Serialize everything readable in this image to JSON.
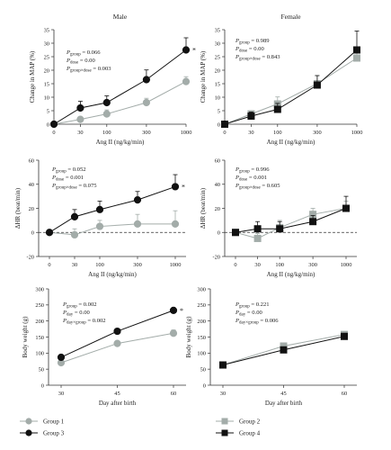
{
  "chart_data": [
    {
      "type": "line",
      "title": "Male",
      "xlabel": "Ang II (ng/kg/min)",
      "ylabel": "Change in MAP (%)",
      "categories": [
        "0",
        "30",
        "100",
        "300",
        "1000"
      ],
      "ylim": [
        0,
        35
      ],
      "yticks": [
        "0",
        "5",
        "10",
        "15",
        "20",
        "25",
        "30",
        "35"
      ],
      "annotations": [
        "Pgroup = 0.066",
        "Pdose = 0.00",
        "Pgroup×dose = 0.003"
      ],
      "sig_marker": "*",
      "series": [
        {
          "name": "Group 1",
          "color": "#a3aca9",
          "marker": "circle",
          "values": [
            0,
            1.8,
            3.8,
            8,
            15.8
          ],
          "errors": [
            0,
            0.9,
            1.5,
            1.6,
            1.8
          ]
        },
        {
          "name": "Group 3",
          "color": "#111111",
          "marker": "circle",
          "values": [
            0,
            6,
            8,
            16.5,
            27.5
          ],
          "errors": [
            0,
            2.5,
            2.5,
            3.6,
            4.5
          ]
        }
      ]
    },
    {
      "type": "line",
      "title": "Female",
      "xlabel": "Ang II (ng/kg/min)",
      "ylabel": "Change in MAP (%)",
      "categories": [
        "0",
        "30",
        "100",
        "300",
        "1000"
      ],
      "ylim": [
        0,
        35
      ],
      "yticks": [
        "0",
        "5",
        "10",
        "15",
        "20",
        "25",
        "30",
        "35"
      ],
      "annotations": [
        "Pgroup = 0.989",
        "Pdose = 0.00",
        "Pgroup×dose = 0.843"
      ],
      "series": [
        {
          "name": "Group 2",
          "color": "#a3aca9",
          "marker": "square",
          "values": [
            0,
            3.8,
            7.5,
            15,
            24.5
          ],
          "errors": [
            0,
            1.2,
            2.6,
            3,
            2.5
          ]
        },
        {
          "name": "Group 4",
          "color": "#111111",
          "marker": "square",
          "values": [
            0,
            3,
            5.5,
            14.5,
            27.5
          ],
          "errors": [
            0,
            1.5,
            2.2,
            3.5,
            7
          ]
        }
      ]
    },
    {
      "type": "line",
      "title": "",
      "xlabel": "Ang II (ng/kg/min)",
      "ylabel": "ΔHR (beat/min)",
      "categories": [
        "0",
        "30",
        "100",
        "300",
        "1000"
      ],
      "ylim": [
        -20,
        60
      ],
      "yticks": [
        "-20",
        "0",
        "20",
        "40",
        "60"
      ],
      "zero_line": true,
      "annotations": [
        "Pgroup = 0.052",
        "Pdose = 0.001",
        "Pgroup×dose = 0.075"
      ],
      "sig_marker": "*",
      "series": [
        {
          "name": "Group 1",
          "color": "#a3aca9",
          "marker": "circle",
          "values": [
            0,
            -2,
            5,
            7,
            7
          ],
          "errors": [
            0,
            5,
            5,
            8,
            11
          ]
        },
        {
          "name": "Group 3",
          "color": "#111111",
          "marker": "circle",
          "values": [
            0,
            13,
            19,
            27,
            38
          ],
          "errors": [
            0,
            6,
            7,
            7,
            10
          ]
        }
      ]
    },
    {
      "type": "line",
      "title": "",
      "xlabel": "Ang II (ng/kg/min)",
      "ylabel": "ΔHR (beat/min)",
      "categories": [
        "0",
        "30",
        "100",
        "300",
        "1000"
      ],
      "ylim": [
        -20,
        60
      ],
      "yticks": [
        "-20",
        "0",
        "20",
        "40",
        "60"
      ],
      "zero_line": true,
      "annotations": [
        "Pgroup = 0.996",
        "Pdose = 0.001",
        "Pgroup×dose = 0.605"
      ],
      "series": [
        {
          "name": "Group 2",
          "color": "#a3aca9",
          "marker": "square",
          "values": [
            0,
            -5,
            4,
            15,
            20
          ],
          "errors": [
            0,
            4,
            6,
            5,
            6
          ]
        },
        {
          "name": "Group 4",
          "color": "#111111",
          "marker": "square",
          "values": [
            0,
            3,
            3,
            9,
            20
          ],
          "errors": [
            0,
            6,
            6,
            5,
            10
          ]
        }
      ]
    },
    {
      "type": "line",
      "title": "",
      "xlabel": "Day after birth",
      "ylabel": "Body weight (g)",
      "categories": [
        "30",
        "45",
        "60"
      ],
      "ylim": [
        0,
        300
      ],
      "yticks": [
        "0",
        "50",
        "100",
        "150",
        "200",
        "250",
        "300"
      ],
      "annotations": [
        "Pgroup = 0.002",
        "Pday = 0.00",
        "Pday×group = 0.002"
      ],
      "sig_marker": "*",
      "series": [
        {
          "name": "Group 1",
          "color": "#a3aca9",
          "marker": "circle",
          "values": [
            70,
            130,
            162
          ],
          "errors": [
            5,
            6,
            10
          ]
        },
        {
          "name": "Group 3",
          "color": "#111111",
          "marker": "circle",
          "values": [
            87,
            168,
            233
          ],
          "errors": [
            4,
            5,
            5
          ]
        }
      ]
    },
    {
      "type": "line",
      "title": "",
      "xlabel": "Day after birth",
      "ylabel": "Body weight (g)",
      "categories": [
        "30",
        "45",
        "60"
      ],
      "ylim": [
        0,
        300
      ],
      "yticks": [
        "0",
        "50",
        "100",
        "150",
        "200",
        "250",
        "300"
      ],
      "annotations": [
        "Pgroup = 0.221",
        "Pday = 0.00",
        "Pday×group = 0.006"
      ],
      "series": [
        {
          "name": "Group 2",
          "color": "#a3aca9",
          "marker": "square",
          "values": [
            63,
            122,
            158
          ],
          "errors": [
            4,
            6,
            6
          ]
        },
        {
          "name": "Group 4",
          "color": "#111111",
          "marker": "square",
          "values": [
            63,
            110,
            152
          ],
          "errors": [
            4,
            5,
            6
          ]
        }
      ]
    }
  ],
  "legend": [
    {
      "label": "Group 1",
      "color": "#a3aca9",
      "marker": "circle"
    },
    {
      "label": "Group 3",
      "color": "#111111",
      "marker": "circle"
    },
    {
      "label": "Group 2",
      "color": "#a3aca9",
      "marker": "square"
    },
    {
      "label": "Group 4",
      "color": "#111111",
      "marker": "square"
    }
  ]
}
